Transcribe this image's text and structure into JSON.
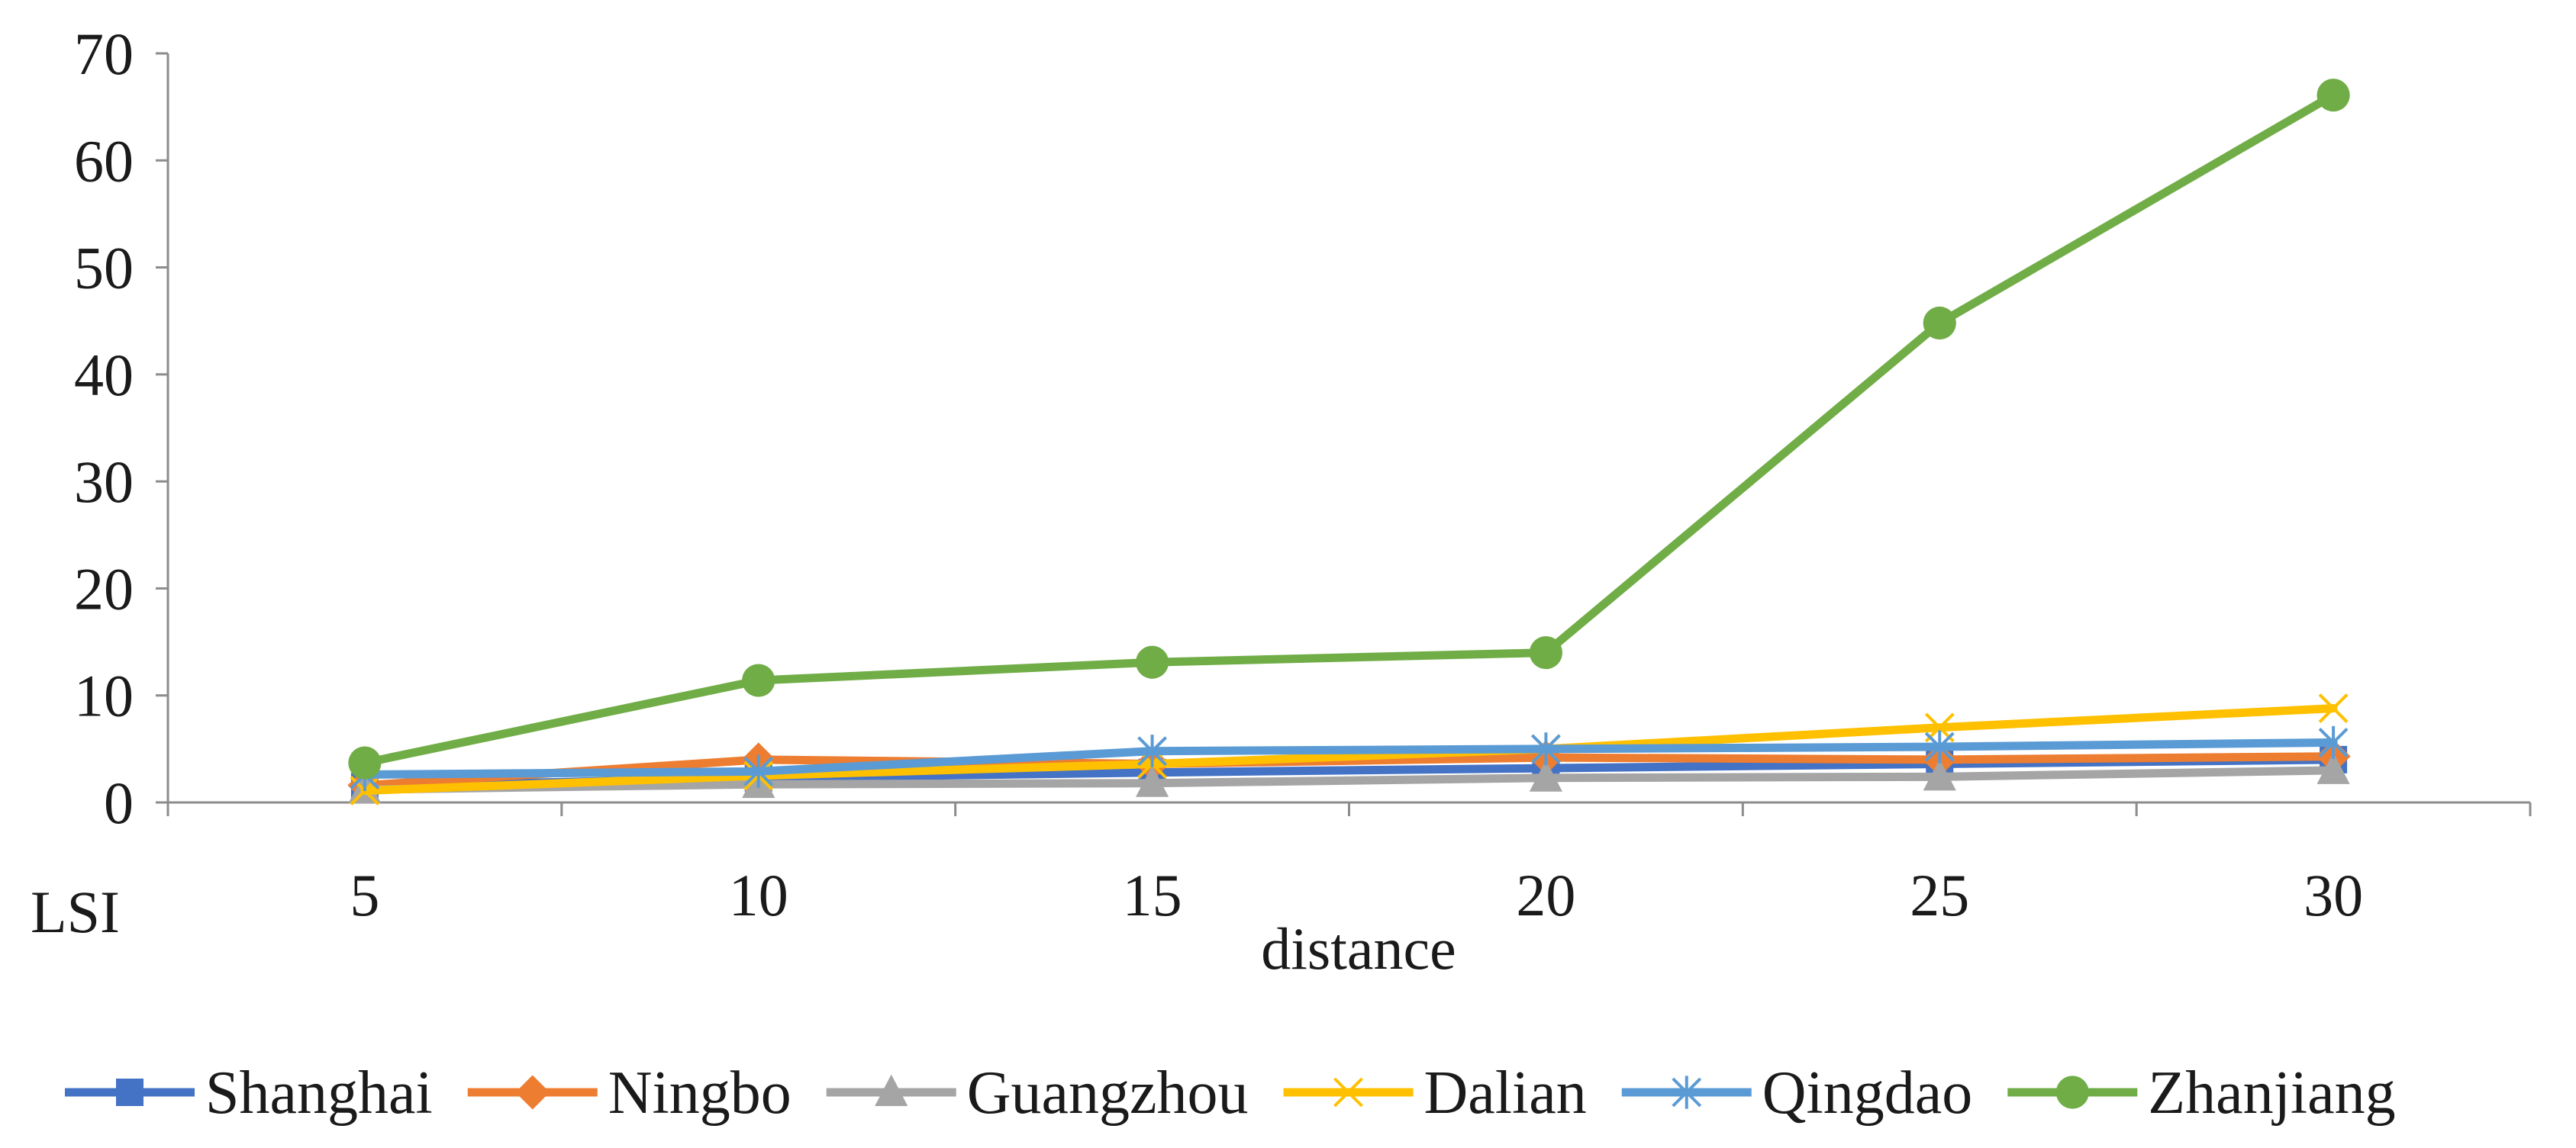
{
  "chart_data": {
    "type": "line",
    "title": "",
    "xlabel": "distance",
    "ylabel": "LSI",
    "x": [
      5,
      10,
      15,
      20,
      25,
      30
    ],
    "x_tick_labels": [
      "5",
      "10",
      "15",
      "20",
      "25",
      "30"
    ],
    "ylim": [
      0,
      70
    ],
    "y_ticks": [
      0,
      10,
      20,
      30,
      40,
      50,
      60,
      70
    ],
    "grid": false,
    "legend_position": "bottom",
    "series": [
      {
        "name": "Shanghai",
        "color": "#4472C4",
        "marker": "square",
        "values": [
          1.5,
          2.3,
          2.8,
          3.2,
          3.6,
          4.0
        ]
      },
      {
        "name": "Ningbo",
        "color": "#ED7D31",
        "marker": "diamond",
        "values": [
          1.6,
          4.0,
          3.6,
          4.2,
          4.0,
          4.3
        ]
      },
      {
        "name": "Guangzhou",
        "color": "#A5A5A5",
        "marker": "triangle",
        "values": [
          1.2,
          1.7,
          1.8,
          2.3,
          2.4,
          3.0
        ]
      },
      {
        "name": "Dalian",
        "color": "#FFC000",
        "marker": "x",
        "values": [
          1.1,
          2.5,
          3.6,
          5.0,
          7.0,
          8.8
        ]
      },
      {
        "name": "Qingdao",
        "color": "#5B9BD5",
        "marker": "star",
        "values": [
          2.6,
          2.9,
          4.8,
          5.0,
          5.2,
          5.6
        ]
      },
      {
        "name": "Zhanjiang",
        "color": "#70AD47",
        "marker": "circle",
        "values": [
          3.7,
          11.4,
          13.1,
          14.0,
          44.8,
          66.1
        ]
      }
    ]
  }
}
